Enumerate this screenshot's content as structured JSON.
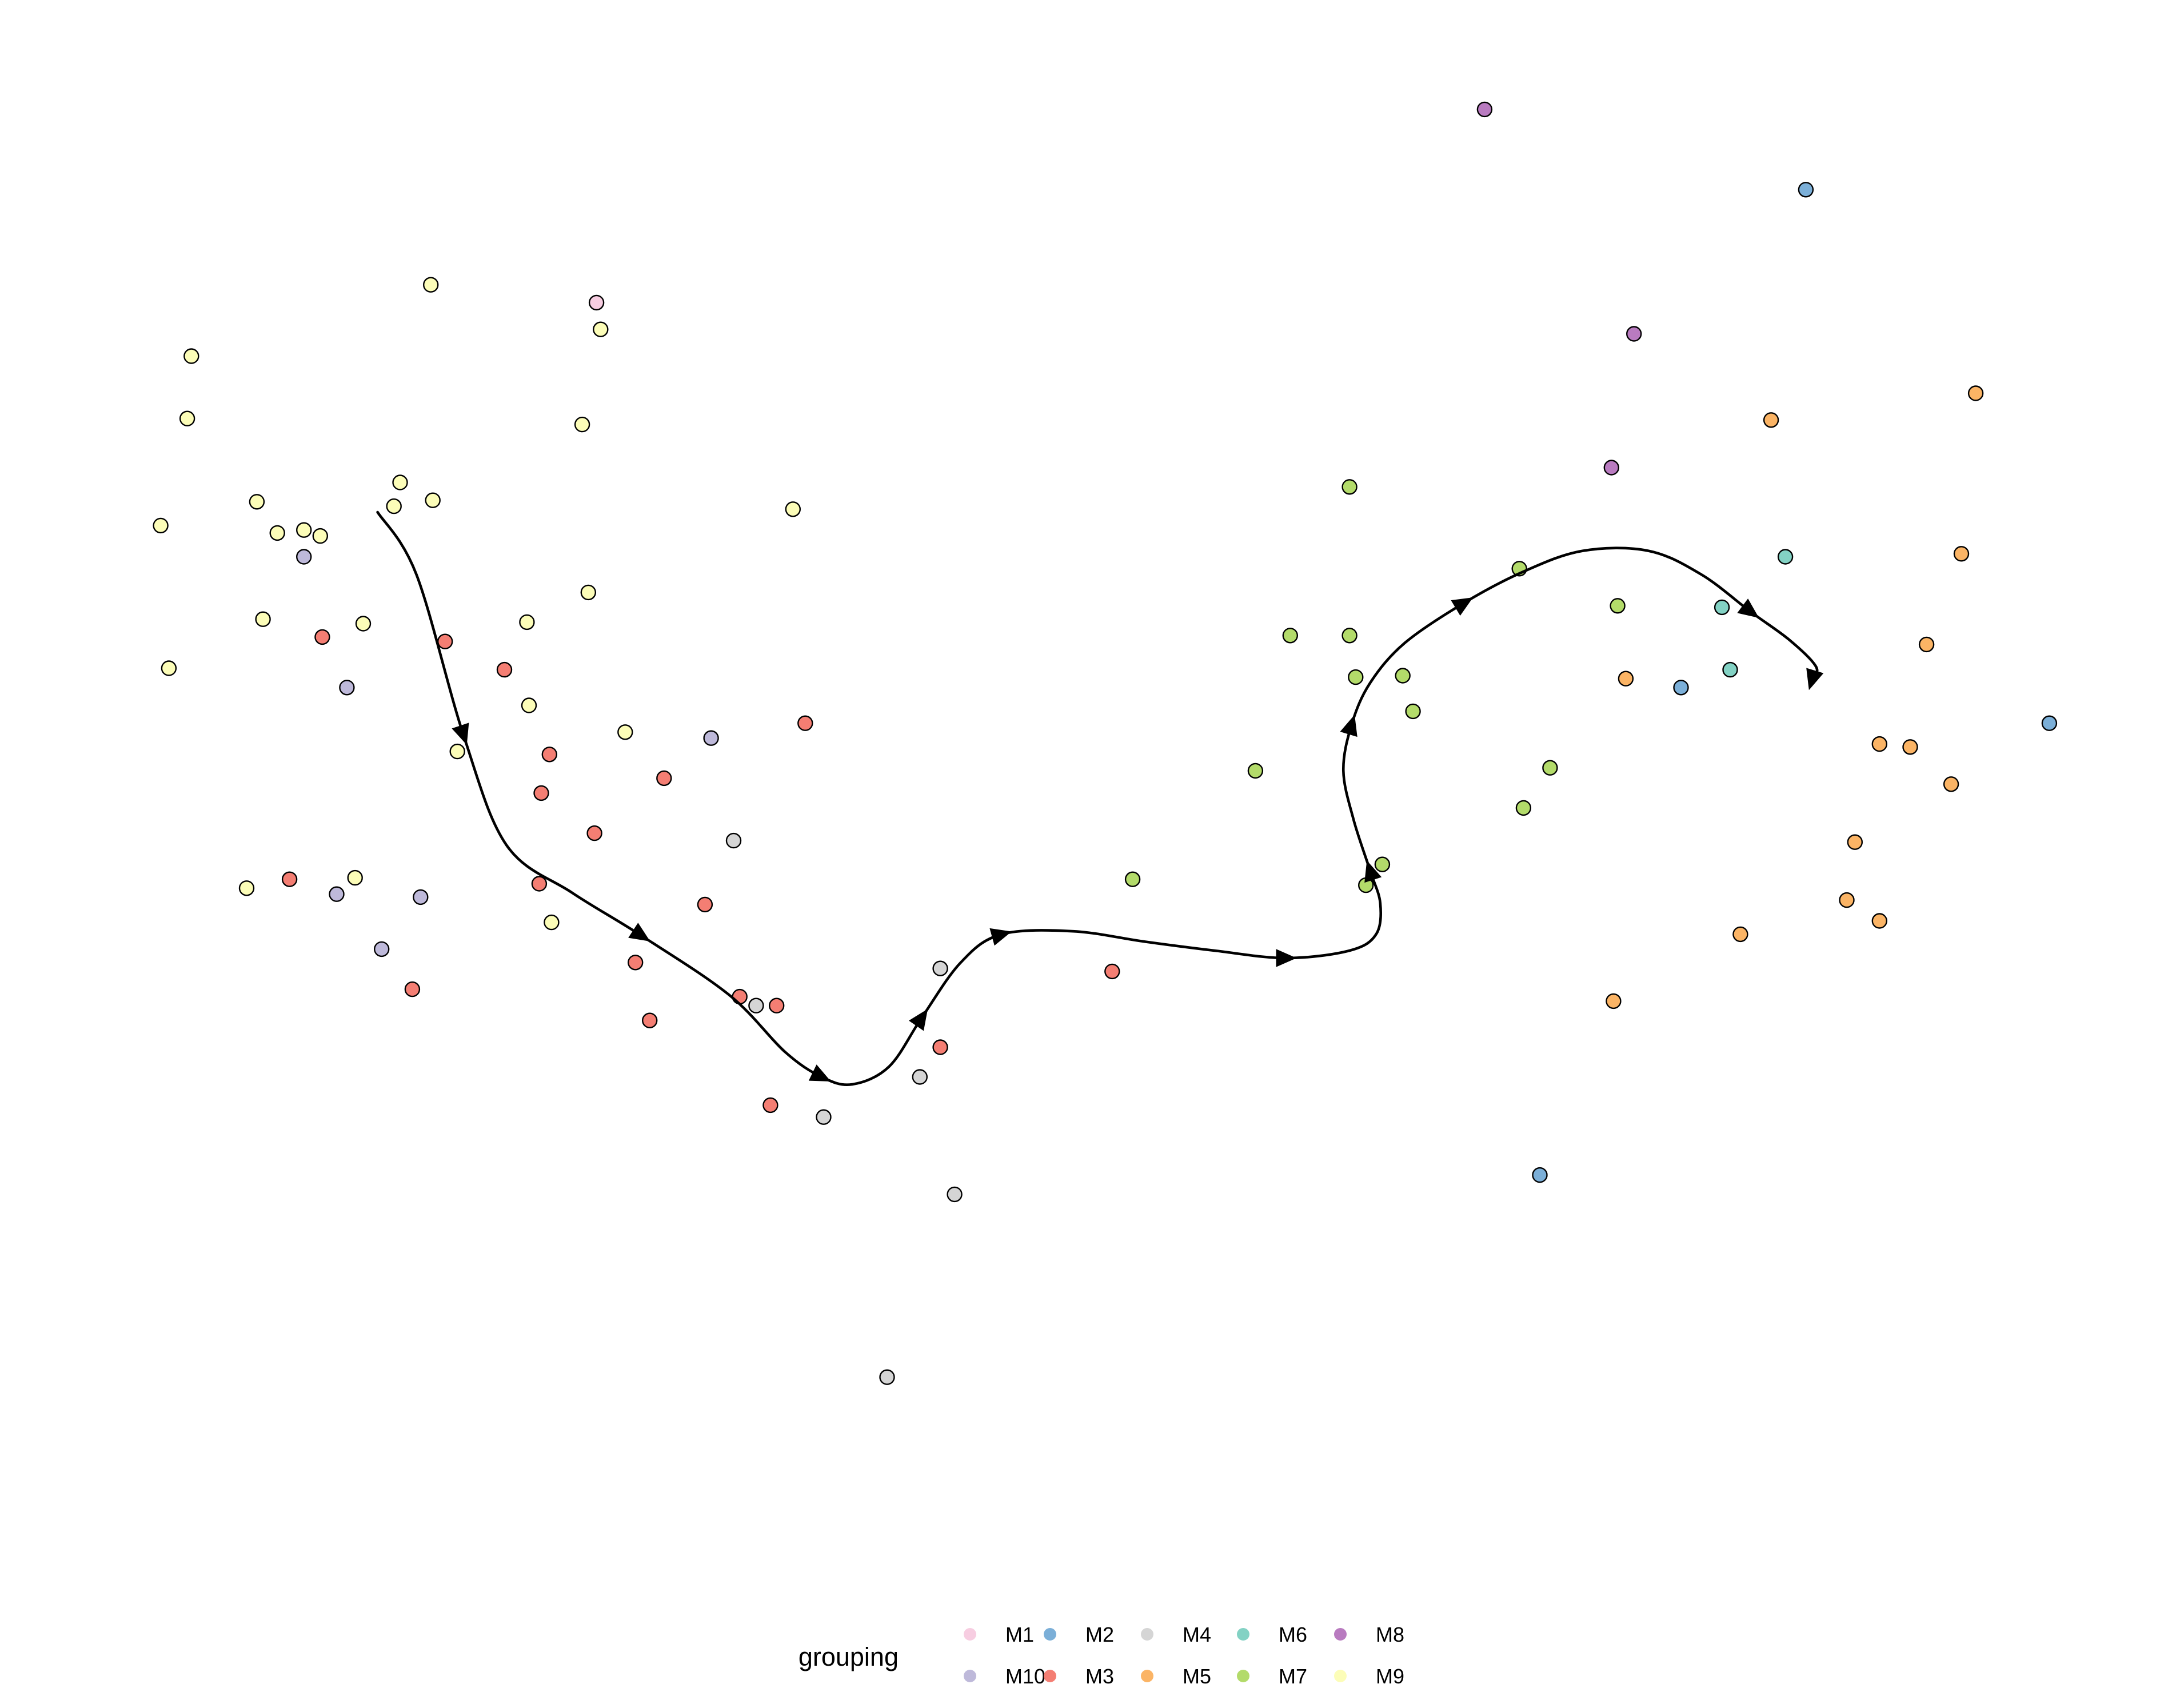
{
  "chart_data": {
    "type": "scatter",
    "title": "",
    "xlabel": "",
    "ylabel": "",
    "xlim": [
      0,
      1
    ],
    "ylim": [
      0,
      1
    ],
    "grid": false,
    "axes_visible": false,
    "legend": {
      "title": "grouping",
      "placement": "bottom",
      "entries": [
        {
          "key": "M1",
          "label": "M1",
          "color": "#F7CDE1"
        },
        {
          "key": "M2",
          "label": "M2",
          "color": "#7BAFD8"
        },
        {
          "key": "M4",
          "label": "M4",
          "color": "#D5D5D5"
        },
        {
          "key": "M6",
          "label": "M6",
          "color": "#83D2C4"
        },
        {
          "key": "M8",
          "label": "M8",
          "color": "#B97BC0"
        },
        {
          "key": "M10",
          "label": "M10",
          "color": "#BEB9DA"
        },
        {
          "key": "M3",
          "label": "M3",
          "color": "#F47E73"
        },
        {
          "key": "M5",
          "label": "M5",
          "color": "#FBB465"
        },
        {
          "key": "M7",
          "label": "M7",
          "color": "#B3DB6A"
        },
        {
          "key": "M9",
          "label": "M9",
          "color": "#FCFDB8"
        }
      ]
    },
    "series": [
      {
        "name": "M1",
        "color": "#F7CDE1",
        "points": [
          [
            0.258,
            0.831
          ]
        ]
      },
      {
        "name": "M2",
        "color": "#7BAFD8",
        "points": [
          [
            0.849,
            0.907
          ],
          [
            0.788,
            0.572
          ],
          [
            0.968,
            0.548
          ],
          [
            0.719,
            0.244
          ]
        ]
      },
      {
        "name": "M3",
        "color": "#F47E73",
        "points": [
          [
            0.124,
            0.606
          ],
          [
            0.184,
            0.603
          ],
          [
            0.213,
            0.584
          ],
          [
            0.36,
            0.548
          ],
          [
            0.235,
            0.527
          ],
          [
            0.231,
            0.501
          ],
          [
            0.291,
            0.511
          ],
          [
            0.257,
            0.474
          ],
          [
            0.23,
            0.44
          ],
          [
            0.311,
            0.426
          ],
          [
            0.108,
            0.443
          ],
          [
            0.277,
            0.387
          ],
          [
            0.168,
            0.369
          ],
          [
            0.328,
            0.364
          ],
          [
            0.346,
            0.358
          ],
          [
            0.284,
            0.348
          ],
          [
            0.426,
            0.33
          ],
          [
            0.343,
            0.291
          ],
          [
            0.51,
            0.381
          ]
        ]
      },
      {
        "name": "M4",
        "color": "#D5D5D5",
        "points": [
          [
            0.325,
            0.469
          ],
          [
            0.426,
            0.383
          ],
          [
            0.336,
            0.358
          ],
          [
            0.416,
            0.31
          ],
          [
            0.369,
            0.283
          ],
          [
            0.433,
            0.231
          ],
          [
            0.4,
            0.108
          ]
        ]
      },
      {
        "name": "M5",
        "color": "#FBB465",
        "points": [
          [
            0.932,
            0.77
          ],
          [
            0.832,
            0.752
          ],
          [
            0.925,
            0.662
          ],
          [
            0.908,
            0.601
          ],
          [
            0.761,
            0.578
          ],
          [
            0.885,
            0.534
          ],
          [
            0.9,
            0.532
          ],
          [
            0.92,
            0.507
          ],
          [
            0.873,
            0.468
          ],
          [
            0.869,
            0.429
          ],
          [
            0.885,
            0.415
          ],
          [
            0.817,
            0.406
          ],
          [
            0.755,
            0.361
          ]
        ]
      },
      {
        "name": "M6",
        "color": "#83D2C4",
        "points": [
          [
            0.839,
            0.66
          ],
          [
            0.808,
            0.626
          ],
          [
            0.812,
            0.584
          ]
        ]
      },
      {
        "name": "M7",
        "color": "#B3DB6A",
        "points": [
          [
            0.626,
            0.707
          ],
          [
            0.709,
            0.652
          ],
          [
            0.757,
            0.627
          ],
          [
            0.597,
            0.607
          ],
          [
            0.626,
            0.607
          ],
          [
            0.629,
            0.579
          ],
          [
            0.652,
            0.58
          ],
          [
            0.657,
            0.556
          ],
          [
            0.724,
            0.518
          ],
          [
            0.58,
            0.516
          ],
          [
            0.711,
            0.491
          ],
          [
            0.642,
            0.453
          ],
          [
            0.52,
            0.443
          ],
          [
            0.634,
            0.439
          ]
        ]
      },
      {
        "name": "M8",
        "color": "#B97BC0",
        "points": [
          [
            0.692,
            0.961
          ],
          [
            0.765,
            0.81
          ],
          [
            0.754,
            0.72
          ]
        ]
      },
      {
        "name": "M9",
        "color": "#FCFDB8",
        "points": [
          [
            0.177,
            0.843
          ],
          [
            0.06,
            0.795
          ],
          [
            0.26,
            0.813
          ],
          [
            0.058,
            0.753
          ],
          [
            0.251,
            0.749
          ],
          [
            0.162,
            0.71
          ],
          [
            0.178,
            0.698
          ],
          [
            0.092,
            0.697
          ],
          [
            0.159,
            0.694
          ],
          [
            0.354,
            0.692
          ],
          [
            0.045,
            0.681
          ],
          [
            0.102,
            0.676
          ],
          [
            0.115,
            0.678
          ],
          [
            0.123,
            0.674
          ],
          [
            0.254,
            0.636
          ],
          [
            0.144,
            0.615
          ],
          [
            0.224,
            0.616
          ],
          [
            0.095,
            0.618
          ],
          [
            0.049,
            0.585
          ],
          [
            0.225,
            0.56
          ],
          [
            0.19,
            0.529
          ],
          [
            0.272,
            0.542
          ],
          [
            0.14,
            0.444
          ],
          [
            0.087,
            0.437
          ],
          [
            0.236,
            0.414
          ]
        ]
      },
      {
        "name": "M10",
        "color": "#BEB9DA",
        "points": [
          [
            0.115,
            0.66
          ],
          [
            0.136,
            0.572
          ],
          [
            0.314,
            0.538
          ],
          [
            0.131,
            0.433
          ],
          [
            0.172,
            0.431
          ],
          [
            0.153,
            0.396
          ]
        ]
      }
    ],
    "trajectory": {
      "points": [
        [
          0.151,
          0.69
        ],
        [
          0.17,
          0.648
        ],
        [
          0.193,
          0.54
        ],
        [
          0.214,
          0.466
        ],
        [
          0.246,
          0.434
        ],
        [
          0.28,
          0.405
        ],
        [
          0.323,
          0.365
        ],
        [
          0.35,
          0.327
        ],
        [
          0.368,
          0.31
        ],
        [
          0.383,
          0.305
        ],
        [
          0.401,
          0.317
        ],
        [
          0.417,
          0.35
        ],
        [
          0.436,
          0.387
        ],
        [
          0.456,
          0.406
        ],
        [
          0.491,
          0.408
        ],
        [
          0.526,
          0.401
        ],
        [
          0.56,
          0.395
        ],
        [
          0.595,
          0.39
        ],
        [
          0.626,
          0.395
        ],
        [
          0.639,
          0.406
        ],
        [
          0.641,
          0.427
        ],
        [
          0.636,
          0.449
        ],
        [
          0.628,
          0.483
        ],
        [
          0.623,
          0.516
        ],
        [
          0.627,
          0.547
        ],
        [
          0.636,
          0.575
        ],
        [
          0.653,
          0.602
        ],
        [
          0.682,
          0.629
        ],
        [
          0.711,
          0.65
        ],
        [
          0.74,
          0.664
        ],
        [
          0.772,
          0.664
        ],
        [
          0.798,
          0.648
        ],
        [
          0.822,
          0.623
        ],
        [
          0.841,
          0.604
        ],
        [
          0.854,
          0.586
        ],
        [
          0.852,
          0.577
        ]
      ],
      "arrows_at": [
        2,
        5,
        8,
        11,
        13,
        17,
        21,
        24,
        27,
        32,
        35
      ]
    }
  }
}
